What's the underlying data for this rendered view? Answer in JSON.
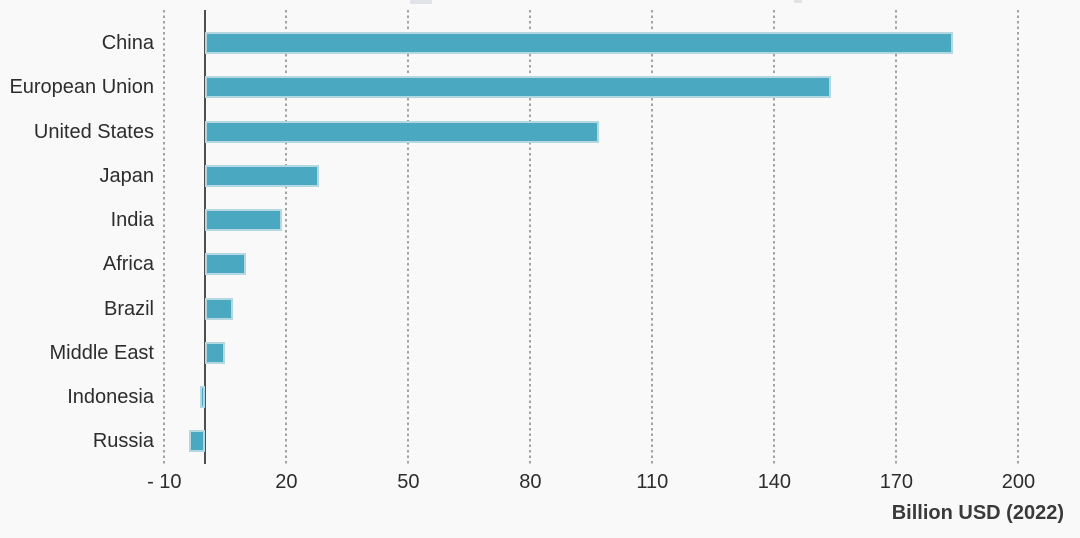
{
  "chart_data": {
    "type": "bar",
    "orientation": "horizontal",
    "title": "",
    "xlabel": "Billion USD (2022)",
    "ylabel": "",
    "categories": [
      "China",
      "European Union",
      "United States",
      "Japan",
      "India",
      "Africa",
      "Brazil",
      "Middle East",
      "Indonesia",
      "Russia"
    ],
    "values": [
      184,
      154,
      97,
      28,
      19,
      10,
      7,
      5,
      -1,
      -4
    ],
    "series": [
      {
        "name": "Billion USD (2022)",
        "values": [
          184,
          154,
          97,
          28,
          19,
          10,
          7,
          5,
          -1,
          -4
        ]
      }
    ],
    "xticks": [
      -10,
      20,
      50,
      80,
      110,
      140,
      170,
      200
    ],
    "xtick_labels": [
      "- 10",
      "20",
      "50",
      "80",
      "110",
      "140",
      "170",
      "200"
    ],
    "xlim": [
      -22,
      215
    ],
    "grid": "vertical-dotted",
    "legend": "none",
    "colors": {
      "bar_fill": "#4aa8c1",
      "bar_edge": "#b3d8e2",
      "background": "#f9f9f9",
      "gridline": "#a3a3a3",
      "zero_axis": "#4f4f4f",
      "text": "#2d2d2d"
    }
  }
}
